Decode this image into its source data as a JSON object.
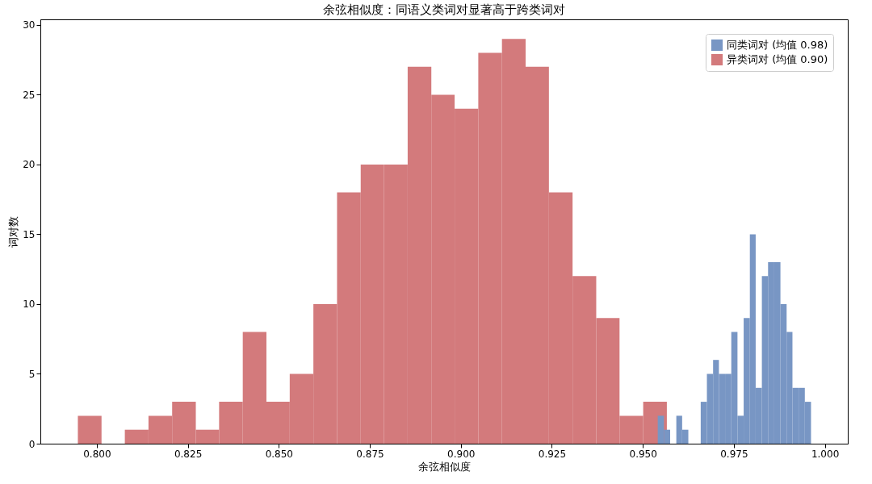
{
  "chart_data": {
    "type": "histogram",
    "title": "余弦相似度：同语义类词对显著高于跨类词对",
    "xlabel": "余弦相似度",
    "ylabel": "词对数",
    "series": [
      {
        "name": "同类词对 (均值 0.98)",
        "color": "#7896c4",
        "bins": [
          0.9541,
          0.9558,
          0.9575,
          0.9592,
          0.9608,
          0.9625,
          0.9642,
          0.9659,
          0.9676,
          0.9693,
          0.9709,
          0.9726,
          0.9743,
          0.976,
          0.9777,
          0.9794,
          0.981,
          0.9827,
          0.9844,
          0.9861,
          0.9878,
          0.9895,
          0.9911,
          0.9928,
          0.9945,
          0.9962
        ],
        "values": [
          2,
          1,
          0,
          2,
          1,
          0,
          0,
          3,
          5,
          6,
          5,
          5,
          8,
          2,
          9,
          15,
          4,
          12,
          13,
          13,
          10,
          8,
          4,
          4,
          3
        ]
      },
      {
        "name": "异类词对 (均值 0.90)",
        "color": "#d37a7c",
        "values": [
          2,
          0,
          1,
          2,
          3,
          1,
          3,
          8,
          3,
          5,
          10,
          18,
          20,
          20,
          27,
          25,
          24,
          28,
          29,
          27,
          18,
          12,
          9,
          2,
          3
        ]
      }
    ],
    "bins": [
      0.7948,
      0.8013,
      0.8077,
      0.8142,
      0.8207,
      0.8272,
      0.8336,
      0.8401,
      0.8466,
      0.853,
      0.8595,
      0.866,
      0.8725,
      0.8789,
      0.8854,
      0.8919,
      0.8983,
      0.9048,
      0.9113,
      0.9178,
      0.9242,
      0.9307,
      0.9372,
      0.9436,
      0.9501,
      0.9566
    ],
    "xlim": [
      0.7845,
      1.0063
    ],
    "ylim": [
      0,
      30.4
    ],
    "xticks": [
      {
        "value": 0.8,
        "label": "0.800"
      },
      {
        "value": 0.825,
        "label": "0.825"
      },
      {
        "value": 0.85,
        "label": "0.850"
      },
      {
        "value": 0.875,
        "label": "0.875"
      },
      {
        "value": 0.9,
        "label": "0.900"
      },
      {
        "value": 0.925,
        "label": "0.925"
      },
      {
        "value": 0.95,
        "label": "0.950"
      },
      {
        "value": 0.975,
        "label": "0.975"
      },
      {
        "value": 1.0,
        "label": "1.000"
      }
    ],
    "yticks": [
      0,
      5,
      10,
      15,
      20,
      25,
      30
    ],
    "legend": "top right",
    "grid": false
  }
}
